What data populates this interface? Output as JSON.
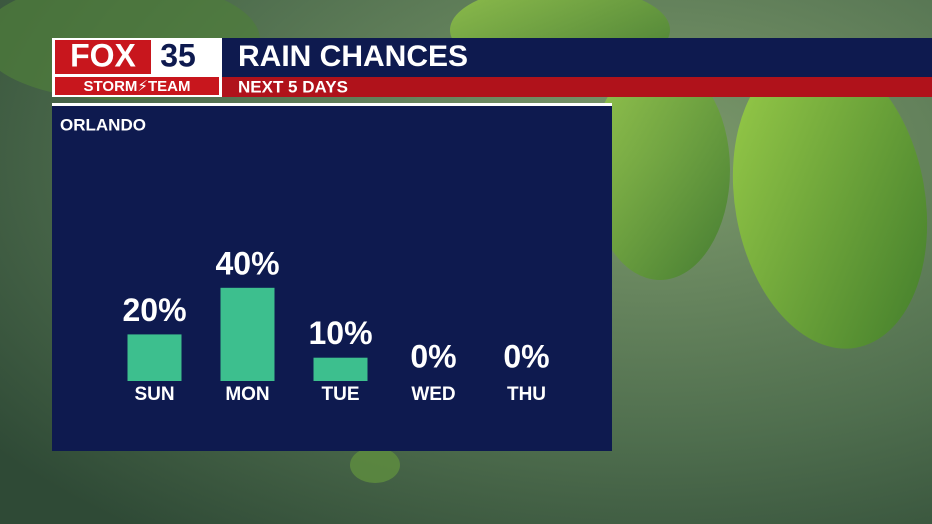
{
  "branding": {
    "network": "FOX",
    "channel": "35",
    "team": "STORM⚡TEAM"
  },
  "chart_data": {
    "type": "bar",
    "title": "RAIN CHANCES",
    "subtitle": "NEXT 5 DAYS",
    "location": "ORLANDO",
    "categories": [
      "SUN",
      "MON",
      "TUE",
      "WED",
      "THU"
    ],
    "values": [
      20,
      40,
      10,
      0,
      0
    ],
    "value_labels": [
      "20%",
      "40%",
      "10%",
      "0%",
      "0%"
    ],
    "color": "#3dbf8e"
  }
}
